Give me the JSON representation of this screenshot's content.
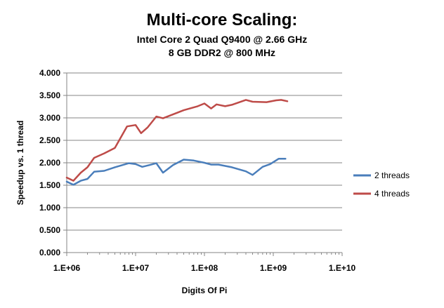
{
  "chart_data": {
    "type": "line",
    "title": "Multi-core Scaling:",
    "subtitle_lines": [
      "Intel Core 2 Quad Q9400 @ 2.66 GHz",
      "8 GB DDR2 @ 800 MHz"
    ],
    "xlabel": "Digits Of Pi",
    "ylabel": "Speedup vs. 1 thread",
    "x_scale": "log",
    "xlim": [
      1000000,
      10000000000
    ],
    "ylim": [
      0,
      4
    ],
    "x_ticks": [
      {
        "value": 1000000,
        "label": "1.E+06"
      },
      {
        "value": 10000000,
        "label": "1.E+07"
      },
      {
        "value": 100000000,
        "label": "1.E+08"
      },
      {
        "value": 1000000000,
        "label": "1.E+09"
      },
      {
        "value": 10000000000,
        "label": "1.E+10"
      }
    ],
    "y_ticks": [
      {
        "value": 0,
        "label": "0.000"
      },
      {
        "value": 0.5,
        "label": "0.500"
      },
      {
        "value": 1.0,
        "label": "1.000"
      },
      {
        "value": 1.5,
        "label": "1.500"
      },
      {
        "value": 2.0,
        "label": "2.000"
      },
      {
        "value": 2.5,
        "label": "2.500"
      },
      {
        "value": 3.0,
        "label": "3.000"
      },
      {
        "value": 3.5,
        "label": "3.500"
      },
      {
        "value": 4.0,
        "label": "4.000"
      }
    ],
    "grid": "horizontal",
    "legend_position": "right",
    "series": [
      {
        "name": "2 threads",
        "color": "#4a7ebb",
        "points": [
          [
            1000000,
            1.58
          ],
          [
            1250000,
            1.51
          ],
          [
            1600000,
            1.6
          ],
          [
            2000000,
            1.64
          ],
          [
            2500000,
            1.8
          ],
          [
            3500000,
            1.82
          ],
          [
            5000000,
            1.9
          ],
          [
            8000000,
            1.99
          ],
          [
            10000000,
            1.97
          ],
          [
            12500000,
            1.91
          ],
          [
            16000000,
            1.95
          ],
          [
            20000000,
            1.99
          ],
          [
            25000000,
            1.78
          ],
          [
            35000000,
            1.95
          ],
          [
            50000000,
            2.07
          ],
          [
            70000000,
            2.05
          ],
          [
            100000000,
            2.0
          ],
          [
            125000000,
            1.96
          ],
          [
            160000000,
            1.96
          ],
          [
            250000000,
            1.9
          ],
          [
            400000000,
            1.81
          ],
          [
            500000000,
            1.73
          ],
          [
            700000000,
            1.91
          ],
          [
            900000000,
            1.97
          ],
          [
            1200000000,
            2.09
          ],
          [
            1500000000,
            2.09
          ]
        ]
      },
      {
        "name": "4 threads",
        "color": "#be4b48",
        "points": [
          [
            1000000,
            1.67
          ],
          [
            1250000,
            1.6
          ],
          [
            1600000,
            1.78
          ],
          [
            2000000,
            1.9
          ],
          [
            2500000,
            2.11
          ],
          [
            3500000,
            2.21
          ],
          [
            5000000,
            2.33
          ],
          [
            7500000,
            2.81
          ],
          [
            10000000,
            2.84
          ],
          [
            12000000,
            2.66
          ],
          [
            15000000,
            2.79
          ],
          [
            20000000,
            3.03
          ],
          [
            25000000,
            2.99
          ],
          [
            50000000,
            3.17
          ],
          [
            80000000,
            3.26
          ],
          [
            100000000,
            3.32
          ],
          [
            125000000,
            3.21
          ],
          [
            150000000,
            3.3
          ],
          [
            200000000,
            3.26
          ],
          [
            250000000,
            3.29
          ],
          [
            400000000,
            3.4
          ],
          [
            500000000,
            3.36
          ],
          [
            800000000,
            3.35
          ],
          [
            1100000000,
            3.39
          ],
          [
            1300000000,
            3.4
          ],
          [
            1600000000,
            3.37
          ]
        ]
      }
    ]
  }
}
